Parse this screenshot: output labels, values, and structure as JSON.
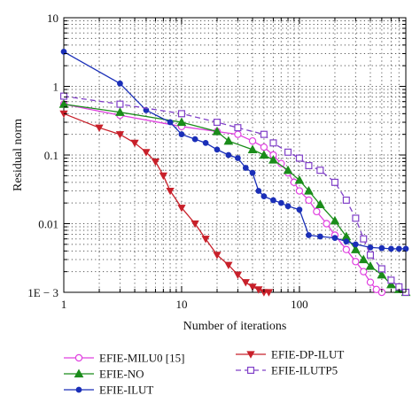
{
  "chart_data": {
    "type": "line",
    "xlabel": "Number of iterations",
    "ylabel": "Residual norm",
    "xscale": "log",
    "yscale": "log",
    "xlim": [
      1,
      800
    ],
    "ylim": [
      0.001,
      10
    ],
    "grid": true,
    "legend_position": "bottom",
    "x_ticks": [
      {
        "value": 1,
        "label": "1"
      },
      {
        "value": 10,
        "label": "10"
      },
      {
        "value": 100,
        "label": "100"
      }
    ],
    "y_ticks": [
      {
        "value": 0.001,
        "label": "1E − 3"
      },
      {
        "value": 0.01,
        "label": "0.01"
      },
      {
        "value": 0.1,
        "label": "0.1"
      },
      {
        "value": 1,
        "label": "1"
      },
      {
        "value": 10,
        "label": "10"
      }
    ],
    "series": [
      {
        "name": "EFIE-MILU0 [15]",
        "color": "#e040e0",
        "marker": "circle-open",
        "line": "solid",
        "points": [
          [
            1,
            0.55
          ],
          [
            3,
            0.38
          ],
          [
            10,
            0.26
          ],
          [
            20,
            0.22
          ],
          [
            30,
            0.2
          ],
          [
            40,
            0.16
          ],
          [
            50,
            0.13
          ],
          [
            60,
            0.1
          ],
          [
            70,
            0.075
          ],
          [
            80,
            0.055
          ],
          [
            90,
            0.04
          ],
          [
            100,
            0.03
          ],
          [
            120,
            0.022
          ],
          [
            140,
            0.015
          ],
          [
            170,
            0.01
          ],
          [
            200,
            0.0068
          ],
          [
            250,
            0.0042
          ],
          [
            300,
            0.0028
          ],
          [
            350,
            0.002
          ],
          [
            400,
            0.0014
          ],
          [
            450,
            0.0011
          ],
          [
            500,
            0.001
          ]
        ]
      },
      {
        "name": "EFIE-NO",
        "color": "#1a8c1a",
        "marker": "triangle",
        "line": "solid",
        "points": [
          [
            1,
            0.55
          ],
          [
            3,
            0.42
          ],
          [
            10,
            0.3
          ],
          [
            20,
            0.22
          ],
          [
            25,
            0.16
          ],
          [
            40,
            0.12
          ],
          [
            50,
            0.1
          ],
          [
            60,
            0.085
          ],
          [
            80,
            0.06
          ],
          [
            100,
            0.043
          ],
          [
            120,
            0.03
          ],
          [
            150,
            0.019
          ],
          [
            200,
            0.011
          ],
          [
            250,
            0.0065
          ],
          [
            300,
            0.0042
          ],
          [
            350,
            0.003
          ],
          [
            400,
            0.0024
          ],
          [
            500,
            0.0018
          ],
          [
            600,
            0.0013
          ],
          [
            700,
            0.0011
          ],
          [
            800,
            0.001
          ]
        ]
      },
      {
        "name": "EFIE-ILUT",
        "color": "#1a2fb8",
        "marker": "dot",
        "line": "solid",
        "points": [
          [
            1,
            3.2
          ],
          [
            3,
            1.1
          ],
          [
            5,
            0.45
          ],
          [
            8,
            0.3
          ],
          [
            10,
            0.2
          ],
          [
            13,
            0.17
          ],
          [
            16,
            0.15
          ],
          [
            20,
            0.12
          ],
          [
            25,
            0.1
          ],
          [
            30,
            0.09
          ],
          [
            35,
            0.065
          ],
          [
            40,
            0.055
          ],
          [
            45,
            0.03
          ],
          [
            50,
            0.025
          ],
          [
            60,
            0.022
          ],
          [
            70,
            0.02
          ],
          [
            80,
            0.018
          ],
          [
            100,
            0.016
          ],
          [
            120,
            0.0068
          ],
          [
            150,
            0.0065
          ],
          [
            200,
            0.0062
          ],
          [
            250,
            0.0055
          ],
          [
            300,
            0.005
          ],
          [
            400,
            0.0045
          ],
          [
            500,
            0.0044
          ],
          [
            600,
            0.0043
          ],
          [
            700,
            0.0043
          ],
          [
            800,
            0.0043
          ]
        ]
      },
      {
        "name": "EFIE-DP-ILUT",
        "color": "#c8202a",
        "marker": "triangle-down",
        "line": "solid",
        "points": [
          [
            1,
            0.4
          ],
          [
            2,
            0.25
          ],
          [
            3,
            0.2
          ],
          [
            4,
            0.15
          ],
          [
            5,
            0.11
          ],
          [
            6,
            0.08
          ],
          [
            7,
            0.05
          ],
          [
            8,
            0.03
          ],
          [
            10,
            0.017
          ],
          [
            13,
            0.01
          ],
          [
            16,
            0.006
          ],
          [
            20,
            0.0035
          ],
          [
            25,
            0.0025
          ],
          [
            30,
            0.0018
          ],
          [
            35,
            0.0014
          ],
          [
            40,
            0.0012
          ],
          [
            45,
            0.0011
          ],
          [
            50,
            0.001
          ],
          [
            55,
            0.001
          ]
        ]
      },
      {
        "name": "EFIE-ILUTP5",
        "color": "#8040c8",
        "marker": "square-open",
        "line": "dashed",
        "points": [
          [
            1,
            0.72
          ],
          [
            3,
            0.55
          ],
          [
            10,
            0.4
          ],
          [
            20,
            0.3
          ],
          [
            30,
            0.25
          ],
          [
            50,
            0.2
          ],
          [
            60,
            0.15
          ],
          [
            80,
            0.11
          ],
          [
            100,
            0.09
          ],
          [
            120,
            0.07
          ],
          [
            150,
            0.06
          ],
          [
            200,
            0.04
          ],
          [
            250,
            0.022
          ],
          [
            300,
            0.012
          ],
          [
            350,
            0.006
          ],
          [
            400,
            0.0035
          ],
          [
            500,
            0.0022
          ],
          [
            600,
            0.0015
          ],
          [
            700,
            0.0012
          ],
          [
            800,
            0.001
          ]
        ]
      }
    ]
  }
}
